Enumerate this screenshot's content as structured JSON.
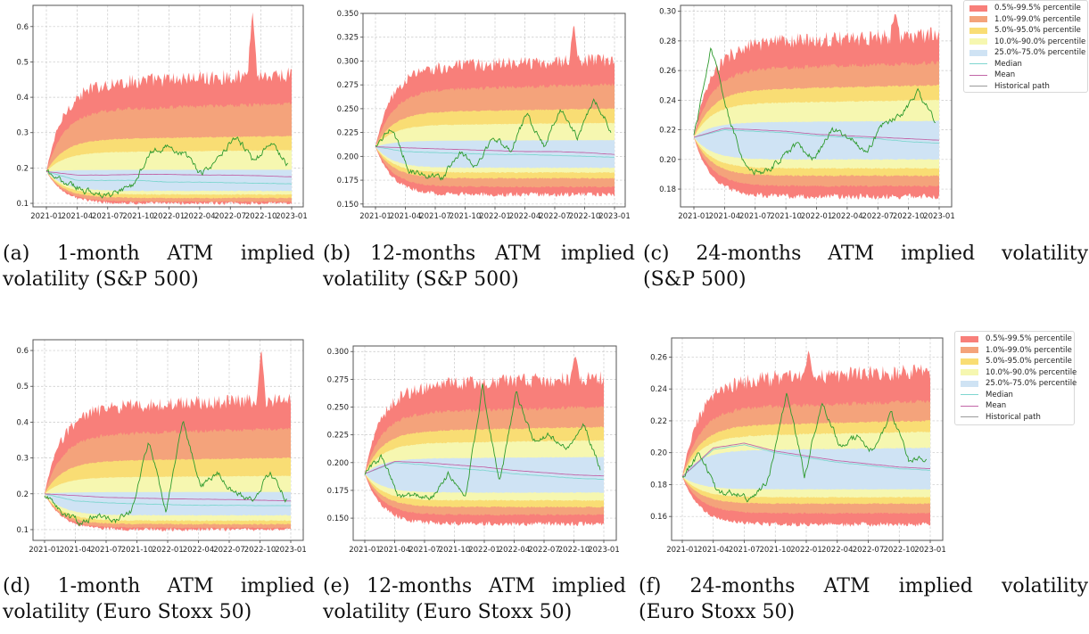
{
  "legend": {
    "bands": [
      {
        "label": "0.5%-99.5% percentile",
        "color": "#f87f7a"
      },
      {
        "label": "1.0%-99.0% percentile",
        "color": "#f4a37b"
      },
      {
        "label": "5.0%-95.0% percentile",
        "color": "#f9dd74"
      },
      {
        "label": "10.0%-90.0% percentile",
        "color": "#f6f7b0"
      },
      {
        "label": "25.0%-75.0% percentile",
        "color": "#cfe3f4"
      }
    ],
    "lines": [
      {
        "label": "Median",
        "color": "#7fd6d0"
      },
      {
        "label": "Mean",
        "color": "#c266a8"
      },
      {
        "label": "Historical path",
        "color": "#9a9a9a"
      }
    ],
    "historical_path_color": "#2e9a2e"
  },
  "chart_data": [
    {
      "id": "a",
      "type": "area",
      "caption_label": "(a)",
      "caption_line1": "1-month ATM implied",
      "caption_line2": "volatility (S&P 500)",
      "x_ticks": [
        "2021-01",
        "2021-04",
        "2021-07",
        "2021-10",
        "2022-01",
        "2022-04",
        "2022-07",
        "2022-10",
        "2023-01"
      ],
      "ylim": [
        0.09,
        0.66
      ],
      "y_ticks": [
        0.1,
        0.2,
        0.3,
        0.4,
        0.5,
        0.6
      ],
      "y_tick_labels": [
        "0.1",
        "0.2",
        "0.3",
        "0.4",
        "0.5",
        "0.6"
      ],
      "grid": true,
      "start": 0.19,
      "bands_upper": [
        0.46,
        0.38,
        0.29,
        0.25,
        0.195
      ],
      "bands_lower": [
        0.1,
        0.105,
        0.115,
        0.125,
        0.135
      ],
      "spike_peak": {
        "x": 0.84,
        "value": 0.65
      },
      "median": [
        0.19,
        0.165,
        0.165,
        0.165,
        0.16,
        0.16,
        0.158,
        0.157,
        0.155
      ],
      "mean": [
        0.19,
        0.18,
        0.18,
        0.182,
        0.182,
        0.18,
        0.18,
        0.178,
        0.175
      ],
      "historical": [
        0.19,
        0.16,
        0.14,
        0.12,
        0.13,
        0.15,
        0.24,
        0.26,
        0.24,
        0.18,
        0.23,
        0.29,
        0.22,
        0.27,
        0.21
      ]
    },
    {
      "id": "b",
      "type": "area",
      "caption_label": "(b)",
      "caption_line1": "12-months ATM implied",
      "caption_line2": "volatility (S&P 500)",
      "x_ticks": [
        "2021-01",
        "2021-04",
        "2021-07",
        "2021-10",
        "2022-01",
        "2022-04",
        "2022-07",
        "2022-10",
        "2023-01"
      ],
      "ylim": [
        0.147,
        0.35
      ],
      "y_ticks": [
        0.15,
        0.175,
        0.2,
        0.225,
        0.25,
        0.275,
        0.3,
        0.325,
        0.35
      ],
      "y_tick_labels": [
        "0.150",
        "0.175",
        "0.200",
        "0.225",
        "0.250",
        "0.275",
        "0.300",
        "0.325",
        "0.350"
      ],
      "grid": true,
      "start": 0.21,
      "bands_upper": [
        0.3,
        0.275,
        0.25,
        0.235,
        0.217
      ],
      "bands_lower": [
        0.16,
        0.168,
        0.177,
        0.183,
        0.188
      ],
      "spike_peak": {
        "x": 0.83,
        "value": 0.341
      },
      "median": [
        0.21,
        0.205,
        0.204,
        0.203,
        0.202,
        0.202,
        0.201,
        0.2,
        0.199
      ],
      "mean": [
        0.21,
        0.209,
        0.208,
        0.207,
        0.206,
        0.205,
        0.205,
        0.204,
        0.202
      ],
      "historical": [
        0.21,
        0.23,
        0.185,
        0.18,
        0.178,
        0.205,
        0.19,
        0.22,
        0.205,
        0.245,
        0.21,
        0.25,
        0.22,
        0.26,
        0.228
      ]
    },
    {
      "id": "c",
      "type": "area",
      "caption_label": "(c)",
      "caption_line1": "24-months ATM implied volatility",
      "caption_line2": "(S&P 500)",
      "x_ticks": [
        "2021-01",
        "2021-04",
        "2021-07",
        "2021-10",
        "2022-01",
        "2022-04",
        "2022-07",
        "2022-10",
        "2023-01"
      ],
      "ylim": [
        0.168,
        0.304
      ],
      "y_ticks": [
        0.18,
        0.2,
        0.22,
        0.24,
        0.26,
        0.28,
        0.3
      ],
      "y_tick_labels": [
        "0.18",
        "0.20",
        "0.22",
        "0.24",
        "0.26",
        "0.28",
        "0.30"
      ],
      "grid": true,
      "start": 0.215,
      "bands_upper": [
        0.283,
        0.265,
        0.25,
        0.24,
        0.226
      ],
      "bands_lower": [
        0.175,
        0.182,
        0.189,
        0.194,
        0.2
      ],
      "spike_peak": {
        "x": 0.82,
        "value": 0.3
      },
      "median": [
        0.215,
        0.22,
        0.219,
        0.218,
        0.216,
        0.215,
        0.214,
        0.212,
        0.211
      ],
      "mean": [
        0.215,
        0.221,
        0.22,
        0.219,
        0.217,
        0.216,
        0.215,
        0.214,
        0.213
      ],
      "historical": [
        0.215,
        0.276,
        0.23,
        0.195,
        0.19,
        0.2,
        0.21,
        0.2,
        0.22,
        0.215,
        0.205,
        0.225,
        0.23,
        0.245,
        0.226
      ]
    },
    {
      "id": "d",
      "type": "area",
      "caption_label": "(d)",
      "caption_line1": "1-month ATM implied",
      "caption_line2": "volatility (Euro Stoxx 50)",
      "x_ticks": [
        "2021-01",
        "2021-04",
        "2021-07",
        "2021-10",
        "2022-01",
        "2022-04",
        "2022-07",
        "2022-10",
        "2023-01"
      ],
      "ylim": [
        0.07,
        0.63
      ],
      "y_ticks": [
        0.1,
        0.2,
        0.3,
        0.4,
        0.5,
        0.6
      ],
      "y_tick_labels": [
        "0.1",
        "0.2",
        "0.3",
        "0.4",
        "0.5",
        "0.6"
      ],
      "grid": true,
      "start": 0.2,
      "bands_upper": [
        0.46,
        0.38,
        0.3,
        0.25,
        0.205
      ],
      "bands_lower": [
        0.1,
        0.105,
        0.115,
        0.125,
        0.14
      ],
      "spike_peak": {
        "x": 0.88,
        "value": 0.61
      },
      "median": [
        0.2,
        0.18,
        0.175,
        0.172,
        0.17,
        0.168,
        0.168,
        0.167,
        0.167
      ],
      "mean": [
        0.2,
        0.195,
        0.19,
        0.188,
        0.186,
        0.185,
        0.184,
        0.182,
        0.18
      ],
      "historical": [
        0.2,
        0.15,
        0.12,
        0.14,
        0.12,
        0.15,
        0.35,
        0.15,
        0.41,
        0.22,
        0.26,
        0.2,
        0.18,
        0.26,
        0.18
      ]
    },
    {
      "id": "e",
      "type": "area",
      "caption_label": "(e)",
      "caption_line1": "12-months ATM implied",
      "caption_line2": "volatility (Euro Stoxx 50)",
      "x_ticks": [
        "2021-01",
        "2021-04",
        "2021-07",
        "2021-10",
        "2022-01",
        "2022-04",
        "2022-07",
        "2022-10",
        "2023-01"
      ],
      "ylim": [
        0.13,
        0.305
      ],
      "y_ticks": [
        0.15,
        0.175,
        0.2,
        0.225,
        0.25,
        0.275,
        0.3
      ],
      "y_tick_labels": [
        "0.150",
        "0.175",
        "0.200",
        "0.225",
        "0.250",
        "0.275",
        "0.300"
      ],
      "grid": true,
      "start": 0.19,
      "bands_upper": [
        0.275,
        0.25,
        0.232,
        0.22,
        0.205
      ],
      "bands_lower": [
        0.145,
        0.153,
        0.16,
        0.166,
        0.173
      ],
      "spike_peak": {
        "x": 0.88,
        "value": 0.298
      },
      "median": [
        0.19,
        0.2,
        0.198,
        0.195,
        0.193,
        0.19,
        0.188,
        0.186,
        0.185
      ],
      "mean": [
        0.19,
        0.201,
        0.2,
        0.198,
        0.196,
        0.193,
        0.191,
        0.189,
        0.188
      ],
      "historical": [
        0.19,
        0.205,
        0.17,
        0.17,
        0.168,
        0.19,
        0.17,
        0.268,
        0.18,
        0.263,
        0.22,
        0.225,
        0.21,
        0.235,
        0.195
      ]
    },
    {
      "id": "f",
      "type": "area",
      "caption_label": "(f)",
      "caption_line1": "24-months ATM implied volatility",
      "caption_line2": "(Euro Stoxx 50)",
      "x_ticks": [
        "2021-01",
        "2021-04",
        "2021-07",
        "2021-10",
        "2022-01",
        "2022-04",
        "2022-07",
        "2022-10",
        "2023-01"
      ],
      "ylim": [
        0.145,
        0.272
      ],
      "y_ticks": [
        0.16,
        0.18,
        0.2,
        0.22,
        0.24,
        0.26
      ],
      "y_tick_labels": [
        "0.16",
        "0.18",
        "0.20",
        "0.22",
        "0.24",
        "0.26"
      ],
      "grid": true,
      "start": 0.185,
      "bands_upper": [
        0.25,
        0.232,
        0.22,
        0.213,
        0.203
      ],
      "bands_lower": [
        0.155,
        0.162,
        0.168,
        0.172,
        0.177
      ],
      "spike_peak": {
        "x": 0.51,
        "value": 0.265
      },
      "median": [
        0.185,
        0.202,
        0.205,
        0.2,
        0.197,
        0.194,
        0.192,
        0.19,
        0.189
      ],
      "mean": [
        0.185,
        0.203,
        0.206,
        0.201,
        0.198,
        0.195,
        0.193,
        0.191,
        0.19
      ],
      "historical": [
        0.185,
        0.2,
        0.175,
        0.175,
        0.17,
        0.185,
        0.238,
        0.185,
        0.233,
        0.205,
        0.21,
        0.2,
        0.225,
        0.195,
        0.197
      ]
    }
  ]
}
